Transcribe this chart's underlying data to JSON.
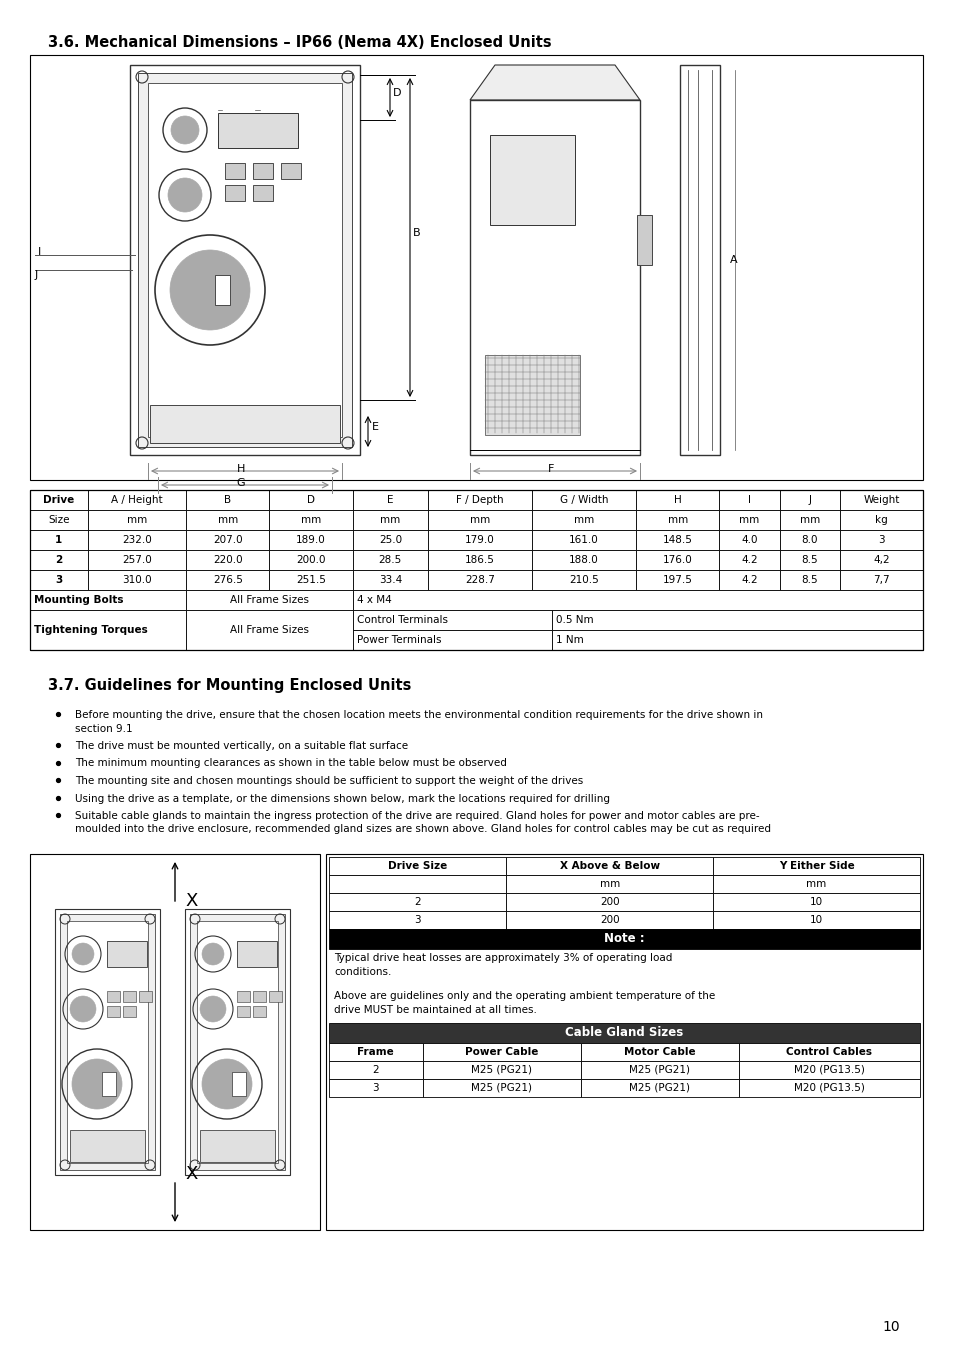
{
  "page_title": "3.6. Mechanical Dimensions – IP66 (Nema 4X) Enclosed Units",
  "section2_title": "3.7. Guidelines for Mounting Enclosed Units",
  "background_color": "#ffffff",
  "page_number": "10",
  "dim_table_col_headers_line1": [
    "Drive",
    "A / Height",
    "B",
    "D",
    "E",
    "F / Depth",
    "G / Width",
    "H",
    "I",
    "J",
    "Weight"
  ],
  "dim_table_col_headers_line2": [
    "Size",
    "mm",
    "mm",
    "mm",
    "mm",
    "mm",
    "mm",
    "mm",
    "mm",
    "mm",
    "kg"
  ],
  "dim_table_rows": [
    [
      "1",
      "232.0",
      "207.0",
      "189.0",
      "25.0",
      "179.0",
      "161.0",
      "148.5",
      "4.0",
      "8.0",
      "3"
    ],
    [
      "2",
      "257.0",
      "220.0",
      "200.0",
      "28.5",
      "186.5",
      "188.0",
      "176.0",
      "4.2",
      "8.5",
      "4,2"
    ],
    [
      "3",
      "310.0",
      "276.5",
      "251.5",
      "33.4",
      "228.7",
      "210.5",
      "197.5",
      "4.2",
      "8.5",
      "7,7"
    ]
  ],
  "bullet_points": [
    [
      "Before mounting the drive, ensure that the chosen location meets the environmental condition requirements for the drive shown in",
      "section 9.1"
    ],
    [
      "The drive must be mounted vertically, on a suitable flat surface"
    ],
    [
      "The minimum mounting clearances as shown in the table below must be observed"
    ],
    [
      "The mounting site and chosen mountings should be sufficient to support the weight of the drives"
    ],
    [
      "Using the drive as a template, or the dimensions shown below, mark the locations required for drilling"
    ],
    [
      "Suitable cable glands to maintain the ingress protection of the drive are required. Gland holes for power and motor cables are pre-",
      "moulded into the drive enclosure, recommended gland sizes are shown above. Gland holes for control cables may be cut as required"
    ]
  ],
  "clearance_headers": [
    "Drive Size",
    "X Above & Below",
    "Y Either Side"
  ],
  "clearance_sub_headers": [
    "",
    "mm",
    "mm"
  ],
  "clearance_rows": [
    [
      "2",
      "200",
      "10"
    ],
    [
      "3",
      "200",
      "10"
    ]
  ],
  "note_label": "Note :",
  "note_text1": "Typical drive heat losses are approximately 3% of operating load",
  "note_text1b": "conditions.",
  "note_text2": "Above are guidelines only and the operating ambient temperature of the",
  "note_text2b": "drive MUST be maintained at all times.",
  "gland_title": "Cable Gland Sizes",
  "gland_headers": [
    "Frame",
    "Power Cable",
    "Motor Cable",
    "Control Cables"
  ],
  "gland_rows": [
    [
      "2",
      "M25 (PG21)",
      "M25 (PG21)",
      "M20 (PG13.5)"
    ],
    [
      "3",
      "M25 (PG21)",
      "M25 (PG21)",
      "M20 (PG13.5)"
    ]
  ]
}
